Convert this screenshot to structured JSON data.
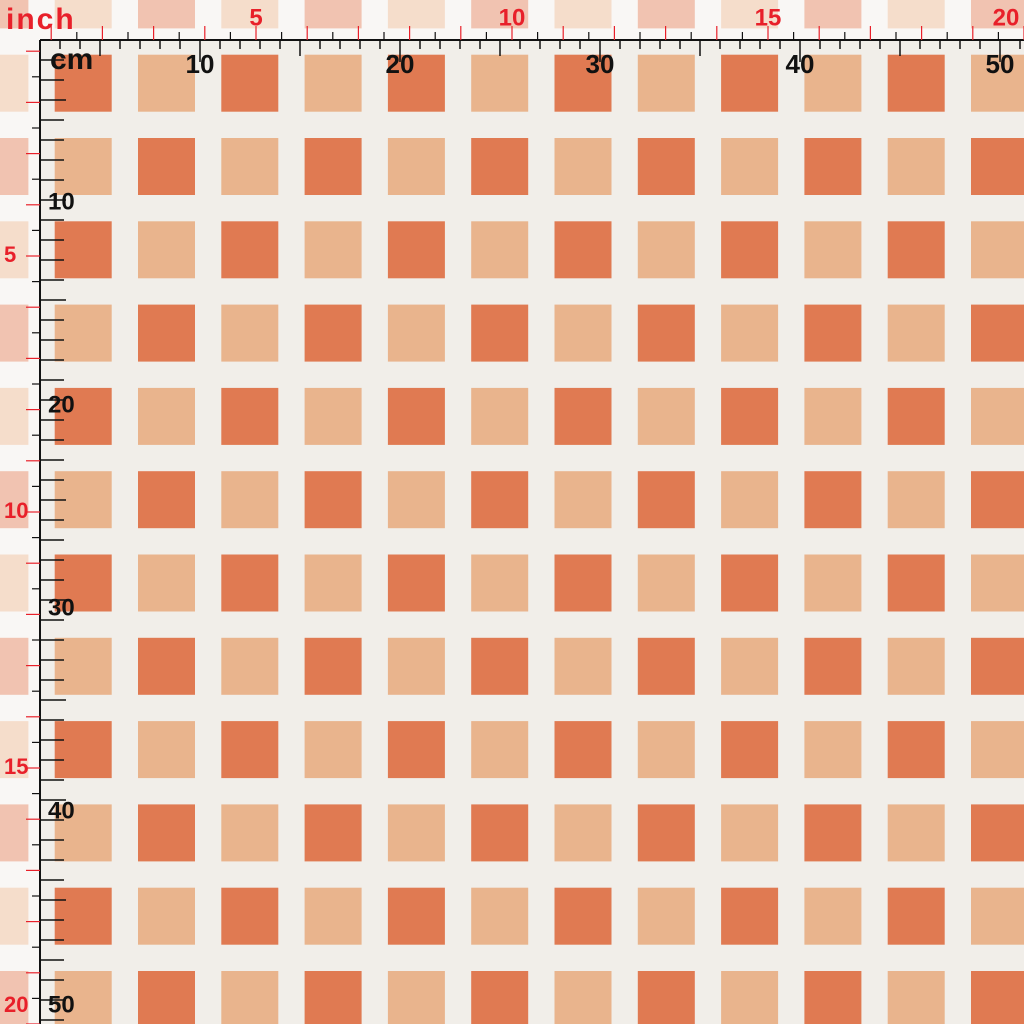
{
  "rulers": {
    "inch_label": "inch",
    "cm_label": "cm",
    "top": {
      "inch": [
        5,
        10,
        15,
        20
      ],
      "cm": [
        10,
        20,
        30,
        40,
        50
      ]
    },
    "left": {
      "inch": [
        5,
        10,
        15,
        20
      ],
      "cm": [
        10,
        20,
        30,
        40,
        50
      ]
    }
  }
}
